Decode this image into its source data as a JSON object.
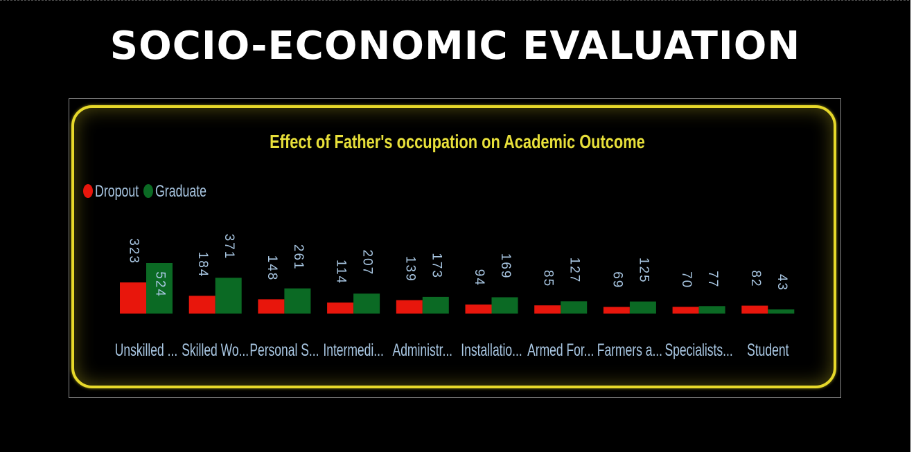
{
  "page": {
    "title": "SOCIO-ECONOMIC EVALUATION"
  },
  "colors": {
    "background": "#000000",
    "frame_border": "#e6d82a",
    "chart_title": "#e8e03a",
    "label_text": "#a9c7e3",
    "dropout": "#e8160c",
    "graduate": "#0b6a24"
  },
  "chart_data": {
    "type": "bar",
    "title": "Effect of Father's occupation on Academic Outcome",
    "legend_position": "top-left",
    "grid": false,
    "categories": [
      "Unskilled ...",
      "Skilled Wo...",
      "Personal S...",
      "Intermedi...",
      "Administr...",
      "Installatio...",
      "Armed For...",
      "Farmers a...",
      "Specialists...",
      "Student"
    ],
    "series": [
      {
        "name": "Dropout",
        "values": [
          323,
          184,
          148,
          114,
          139,
          94,
          85,
          69,
          70,
          82
        ]
      },
      {
        "name": "Graduate",
        "values": [
          524,
          371,
          261,
          207,
          173,
          169,
          127,
          125,
          77,
          43
        ]
      }
    ],
    "ylim": [
      0,
      524
    ]
  }
}
